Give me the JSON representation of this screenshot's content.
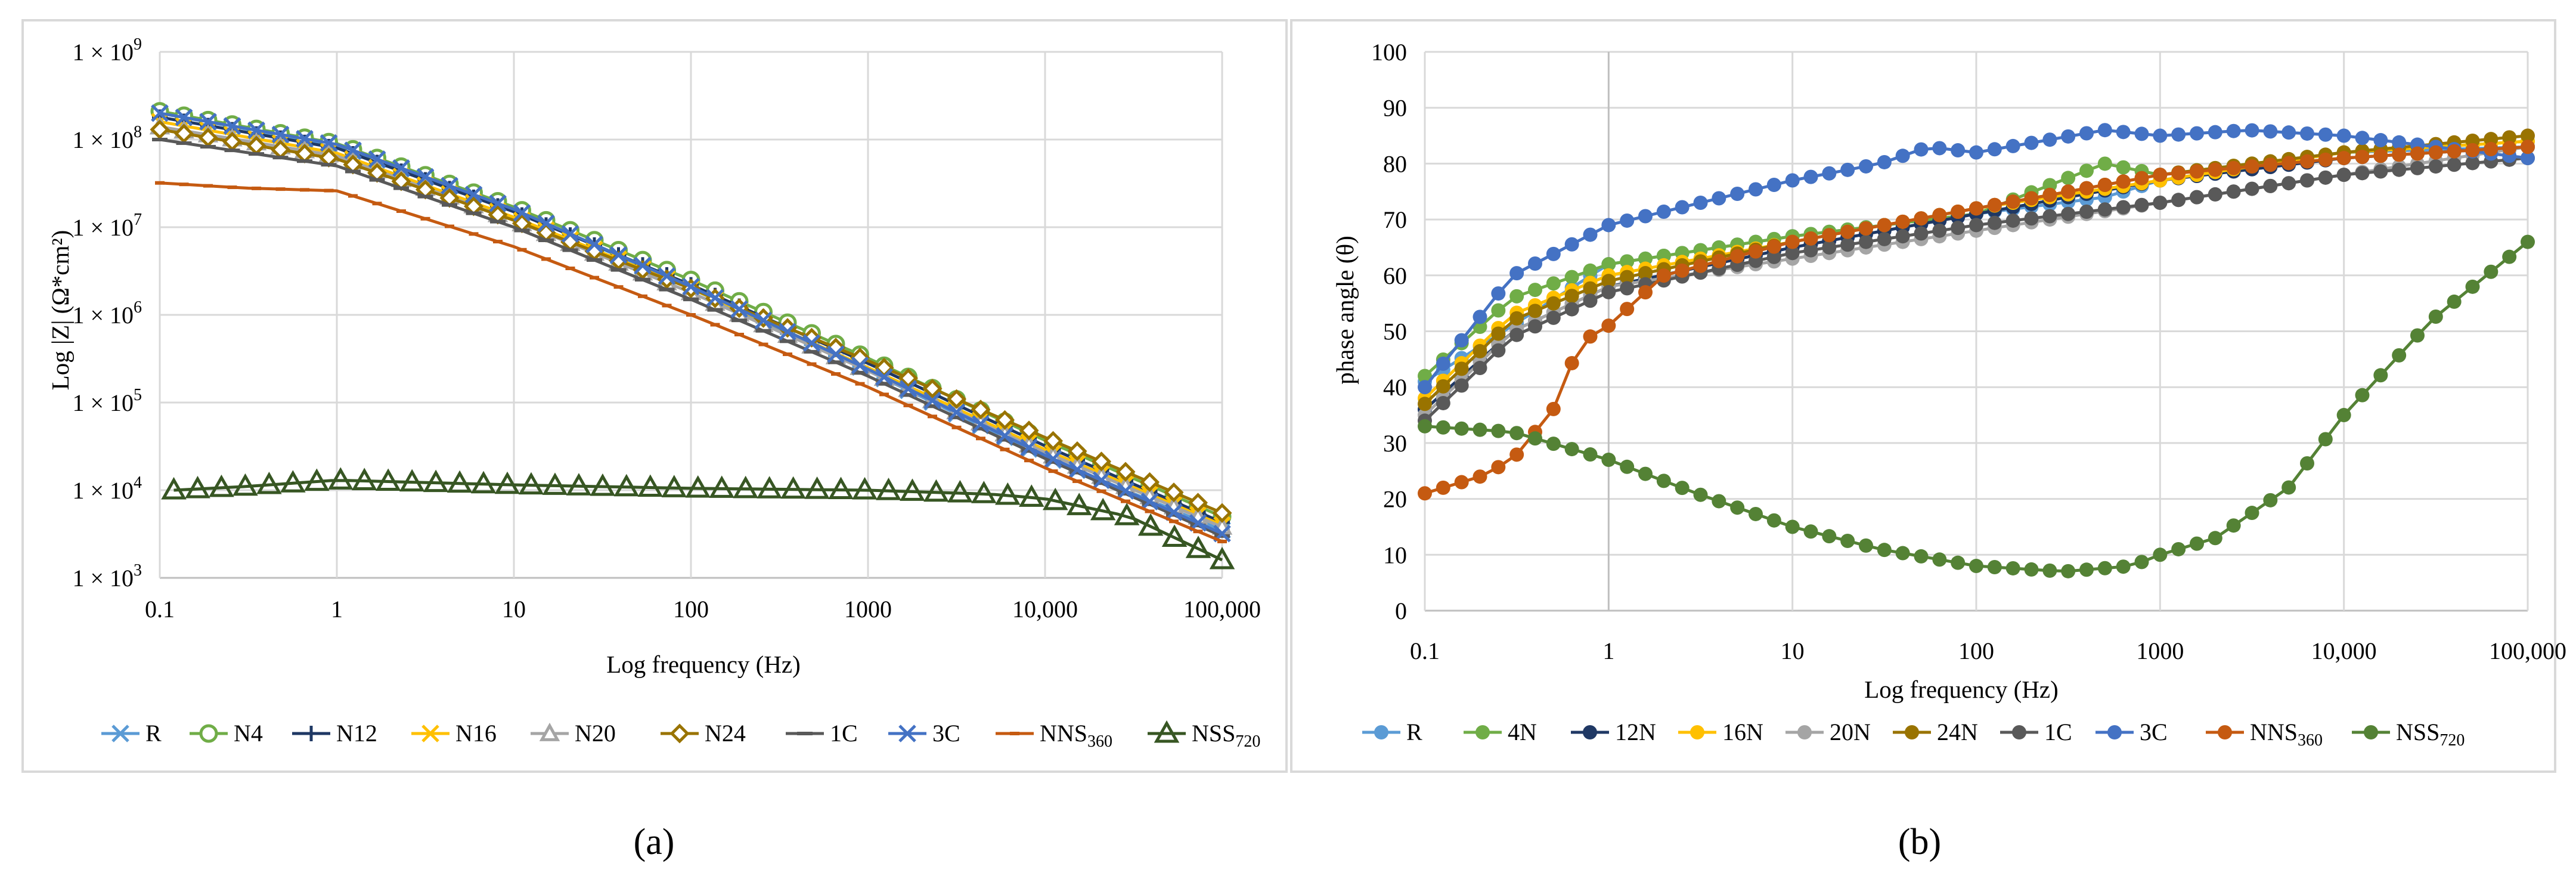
{
  "chart_data": [
    {
      "panel_label": "(a)",
      "type": "scatter",
      "title": "",
      "xlabel": "Log frequency (Hz)",
      "ylabel": "Log |Z| (Ω*cm²)",
      "xscale": "log",
      "yscale": "log",
      "xlim": [
        0.1,
        100000
      ],
      "ylim": [
        1000,
        1000000000
      ],
      "grid": true,
      "legend_position": "bottom",
      "x_tick_labels": [
        "0.1",
        "1",
        "10",
        "100",
        "1000",
        "10,000",
        "100,000"
      ],
      "y_tick_labels": [
        {
          "text": "1 × 10",
          "sup": "3"
        },
        {
          "text": "1 × 10",
          "sup": "4"
        },
        {
          "text": "1 × 10",
          "sup": "5"
        },
        {
          "text": "1 × 10",
          "sup": "6"
        },
        {
          "text": "1 × 10",
          "sup": "7"
        },
        {
          "text": "1 × 10",
          "sup": "8"
        },
        {
          "text": "1 × 10",
          "sup": "9"
        }
      ],
      "series": [
        {
          "name": "R",
          "sub": "",
          "color": "#5b9bd5",
          "marker": "x-star",
          "points": [
            [
              0.1,
              200000000.0
            ],
            [
              1,
              85000000.0
            ],
            [
              10,
              16000000.0
            ],
            [
              100,
              2000000.0
            ],
            [
              1000,
              230000.0
            ],
            [
              10000,
              24000.0
            ],
            [
              100000,
              3500.0
            ]
          ]
        },
        {
          "name": "N4",
          "sub": "",
          "color": "#70ad47",
          "marker": "circle-open",
          "points": [
            [
              0.1,
              210000000.0
            ],
            [
              1,
              90000000.0
            ],
            [
              10,
              17000000.0
            ],
            [
              100,
              2500000.0
            ],
            [
              1000,
              320000.0
            ],
            [
              10000,
              37000.0
            ],
            [
              100000,
              5000.0
            ]
          ]
        },
        {
          "name": "N12",
          "sub": "",
          "color": "#1f3864",
          "marker": "plus",
          "points": [
            [
              0.1,
              180000000.0
            ],
            [
              1,
              80000000.0
            ],
            [
              10,
              15000000.0
            ],
            [
              100,
              2200000.0
            ],
            [
              1000,
              280000.0
            ],
            [
              10000,
              32000.0
            ],
            [
              100000,
              4300.0
            ]
          ]
        },
        {
          "name": "N16",
          "sub": "",
          "color": "#ffc000",
          "marker": "x",
          "points": [
            [
              0.1,
              160000000.0
            ],
            [
              1,
              70000000.0
            ],
            [
              10,
              13000000.0
            ],
            [
              100,
              2000000.0
            ],
            [
              1000,
              250000.0
            ],
            [
              10000,
              29000.0
            ],
            [
              100000,
              4000.0
            ]
          ]
        },
        {
          "name": "N20",
          "sub": "",
          "color": "#a5a5a5",
          "marker": "triangle-open",
          "points": [
            [
              0.1,
              140000000.0
            ],
            [
              1,
              65000000.0
            ],
            [
              10,
              12000000.0
            ],
            [
              100,
              1800000.0
            ],
            [
              1000,
              230000.0
            ],
            [
              10000,
              27000.0
            ],
            [
              100000,
              3800.0
            ]
          ]
        },
        {
          "name": "N24",
          "sub": "",
          "color": "#997300",
          "marker": "diamond-open",
          "points": [
            [
              0.1,
              130000000.0
            ],
            [
              1,
              60000000.0
            ],
            [
              10,
              12000000.0
            ],
            [
              100,
              2000000.0
            ],
            [
              1000,
              300000.0
            ],
            [
              10000,
              40000.0
            ],
            [
              100000,
              5500.0
            ]
          ]
        },
        {
          "name": "1C",
          "sub": "",
          "color": "#595959",
          "marker": "dash",
          "points": [
            [
              0.1,
              100000000.0
            ],
            [
              1,
              50000000.0
            ],
            [
              10,
              10000000.0
            ],
            [
              100,
              1500000.0
            ],
            [
              1000,
              200000.0
            ],
            [
              10000,
              23000.0
            ],
            [
              100000,
              3000.0
            ]
          ]
        },
        {
          "name": "3C",
          "sub": "",
          "color": "#4472c4",
          "marker": "x",
          "points": [
            [
              0.1,
              200000000.0
            ],
            [
              1,
              88000000.0
            ],
            [
              10,
              16000000.0
            ],
            [
              100,
              2100000.0
            ],
            [
              1000,
              240000.0
            ],
            [
              10000,
              25000.0
            ],
            [
              100000,
              3200.0
            ]
          ]
        },
        {
          "name": "NNS",
          "sub": "360",
          "color": "#c55a11",
          "marker": "dash-small",
          "points": [
            [
              0.1,
              32000000.0
            ],
            [
              0.3,
              28000000.0
            ],
            [
              1,
              26000000.0
            ],
            [
              10,
              6000000.0
            ],
            [
              100,
              1000000.0
            ],
            [
              1000,
              150000.0
            ],
            [
              10000,
              18000.0
            ],
            [
              100000,
              2600.0
            ]
          ]
        },
        {
          "name": "NSS",
          "sub": "720",
          "color": "#375623",
          "marker": "triangle-open-large",
          "points": [
            [
              0.12,
              10000.0
            ],
            [
              0.3,
              11000.0
            ],
            [
              1,
              13000.0
            ],
            [
              10,
              11500.0
            ],
            [
              100,
              10500.0
            ],
            [
              1000,
              10000.0
            ],
            [
              5000,
              9000.0
            ],
            [
              10000,
              8000.0
            ],
            [
              30000,
              5000.0
            ],
            [
              100000,
              1600.0
            ]
          ]
        }
      ]
    },
    {
      "panel_label": "(b)",
      "type": "line",
      "title": "",
      "xlabel": "Log frequency (Hz)",
      "ylabel": "phase angle (θ)",
      "xscale": "log",
      "xlim": [
        0.1,
        100000
      ],
      "ylim": [
        0,
        100
      ],
      "grid": true,
      "legend_position": "bottom",
      "x_tick_labels": [
        "0.1",
        "1",
        "10",
        "100",
        "1000",
        "10,000",
        "100,000"
      ],
      "y_tick_labels": [
        "0",
        "10",
        "20",
        "30",
        "40",
        "50",
        "60",
        "70",
        "80",
        "90",
        "100"
      ],
      "series": [
        {
          "name": "R",
          "sub": "",
          "color": "#5b9bd5",
          "points": [
            [
              0.1,
              41
            ],
            [
              1,
              62
            ],
            [
              10,
              67
            ],
            [
              100,
              71
            ],
            [
              500,
              74
            ],
            [
              1000,
              77
            ],
            [
              10000,
              82
            ],
            [
              100000,
              83
            ]
          ]
        },
        {
          "name": "4N",
          "sub": "",
          "color": "#70ad47",
          "points": [
            [
              0.1,
              42
            ],
            [
              0.3,
              56
            ],
            [
              1,
              62
            ],
            [
              10,
              67
            ],
            [
              100,
              71
            ],
            [
              500,
              80
            ],
            [
              1000,
              78
            ],
            [
              10000,
              82
            ],
            [
              100000,
              84
            ]
          ]
        },
        {
          "name": "12N",
          "sub": "",
          "color": "#1f3864",
          "points": [
            [
              0.1,
              36
            ],
            [
              0.3,
              50
            ],
            [
              1,
              58
            ],
            [
              10,
              65
            ],
            [
              100,
              71
            ],
            [
              1000,
              77
            ],
            [
              10000,
              81
            ],
            [
              100000,
              83
            ]
          ]
        },
        {
          "name": "16N",
          "sub": "",
          "color": "#ffc000",
          "points": [
            [
              0.1,
              38
            ],
            [
              0.3,
              53
            ],
            [
              1,
              60
            ],
            [
              10,
              66
            ],
            [
              100,
              72
            ],
            [
              1000,
              77
            ],
            [
              10000,
              82
            ],
            [
              100000,
              84
            ]
          ]
        },
        {
          "name": "20N",
          "sub": "",
          "color": "#a5a5a5",
          "points": [
            [
              0.1,
              35
            ],
            [
              0.3,
              50
            ],
            [
              1,
              58
            ],
            [
              10,
              63
            ],
            [
              100,
              68
            ],
            [
              1000,
              73
            ],
            [
              10000,
              78
            ],
            [
              100000,
              83
            ]
          ]
        },
        {
          "name": "24N",
          "sub": "",
          "color": "#997300",
          "points": [
            [
              0.1,
              37
            ],
            [
              0.3,
              52
            ],
            [
              1,
              59
            ],
            [
              10,
              66
            ],
            [
              100,
              72
            ],
            [
              1000,
              78
            ],
            [
              10000,
              82
            ],
            [
              100000,
              85
            ]
          ]
        },
        {
          "name": "1C",
          "sub": "",
          "color": "#595959",
          "points": [
            [
              0.1,
              34
            ],
            [
              0.3,
              49
            ],
            [
              1,
              57
            ],
            [
              10,
              64
            ],
            [
              100,
              69
            ],
            [
              1000,
              73
            ],
            [
              10000,
              78
            ],
            [
              100000,
              81
            ]
          ]
        },
        {
          "name": "3C",
          "sub": "",
          "color": "#4472c4",
          "points": [
            [
              0.1,
              40
            ],
            [
              0.3,
              60
            ],
            [
              1,
              69
            ],
            [
              10,
              77
            ],
            [
              30,
              80
            ],
            [
              55,
              83
            ],
            [
              100,
              82
            ],
            [
              500,
              86
            ],
            [
              1000,
              85
            ],
            [
              3000,
              86
            ],
            [
              10000,
              85
            ],
            [
              100000,
              81
            ]
          ]
        },
        {
          "name": "NNS",
          "sub": "360",
          "color": "#c55a11",
          "points": [
            [
              0.1,
              21
            ],
            [
              0.2,
              24
            ],
            [
              0.3,
              27
            ],
            [
              0.5,
              36
            ],
            [
              0.7,
              48
            ],
            [
              1,
              51
            ],
            [
              2,
              60
            ],
            [
              10,
              66
            ],
            [
              100,
              72
            ],
            [
              1000,
              78
            ],
            [
              10000,
              81
            ],
            [
              100000,
              83
            ]
          ]
        },
        {
          "name": "NSS",
          "sub": "720",
          "color": "#548235",
          "points": [
            [
              0.1,
              33
            ],
            [
              0.3,
              32
            ],
            [
              1,
              27
            ],
            [
              3,
              21
            ],
            [
              10,
              15
            ],
            [
              30,
              11
            ],
            [
              100,
              8
            ],
            [
              300,
              7
            ],
            [
              700,
              8
            ],
            [
              1000,
              10
            ],
            [
              2000,
              13
            ],
            [
              5000,
              22
            ],
            [
              10000,
              35
            ],
            [
              30000,
              52
            ],
            [
              100000,
              66
            ]
          ]
        }
      ]
    }
  ]
}
